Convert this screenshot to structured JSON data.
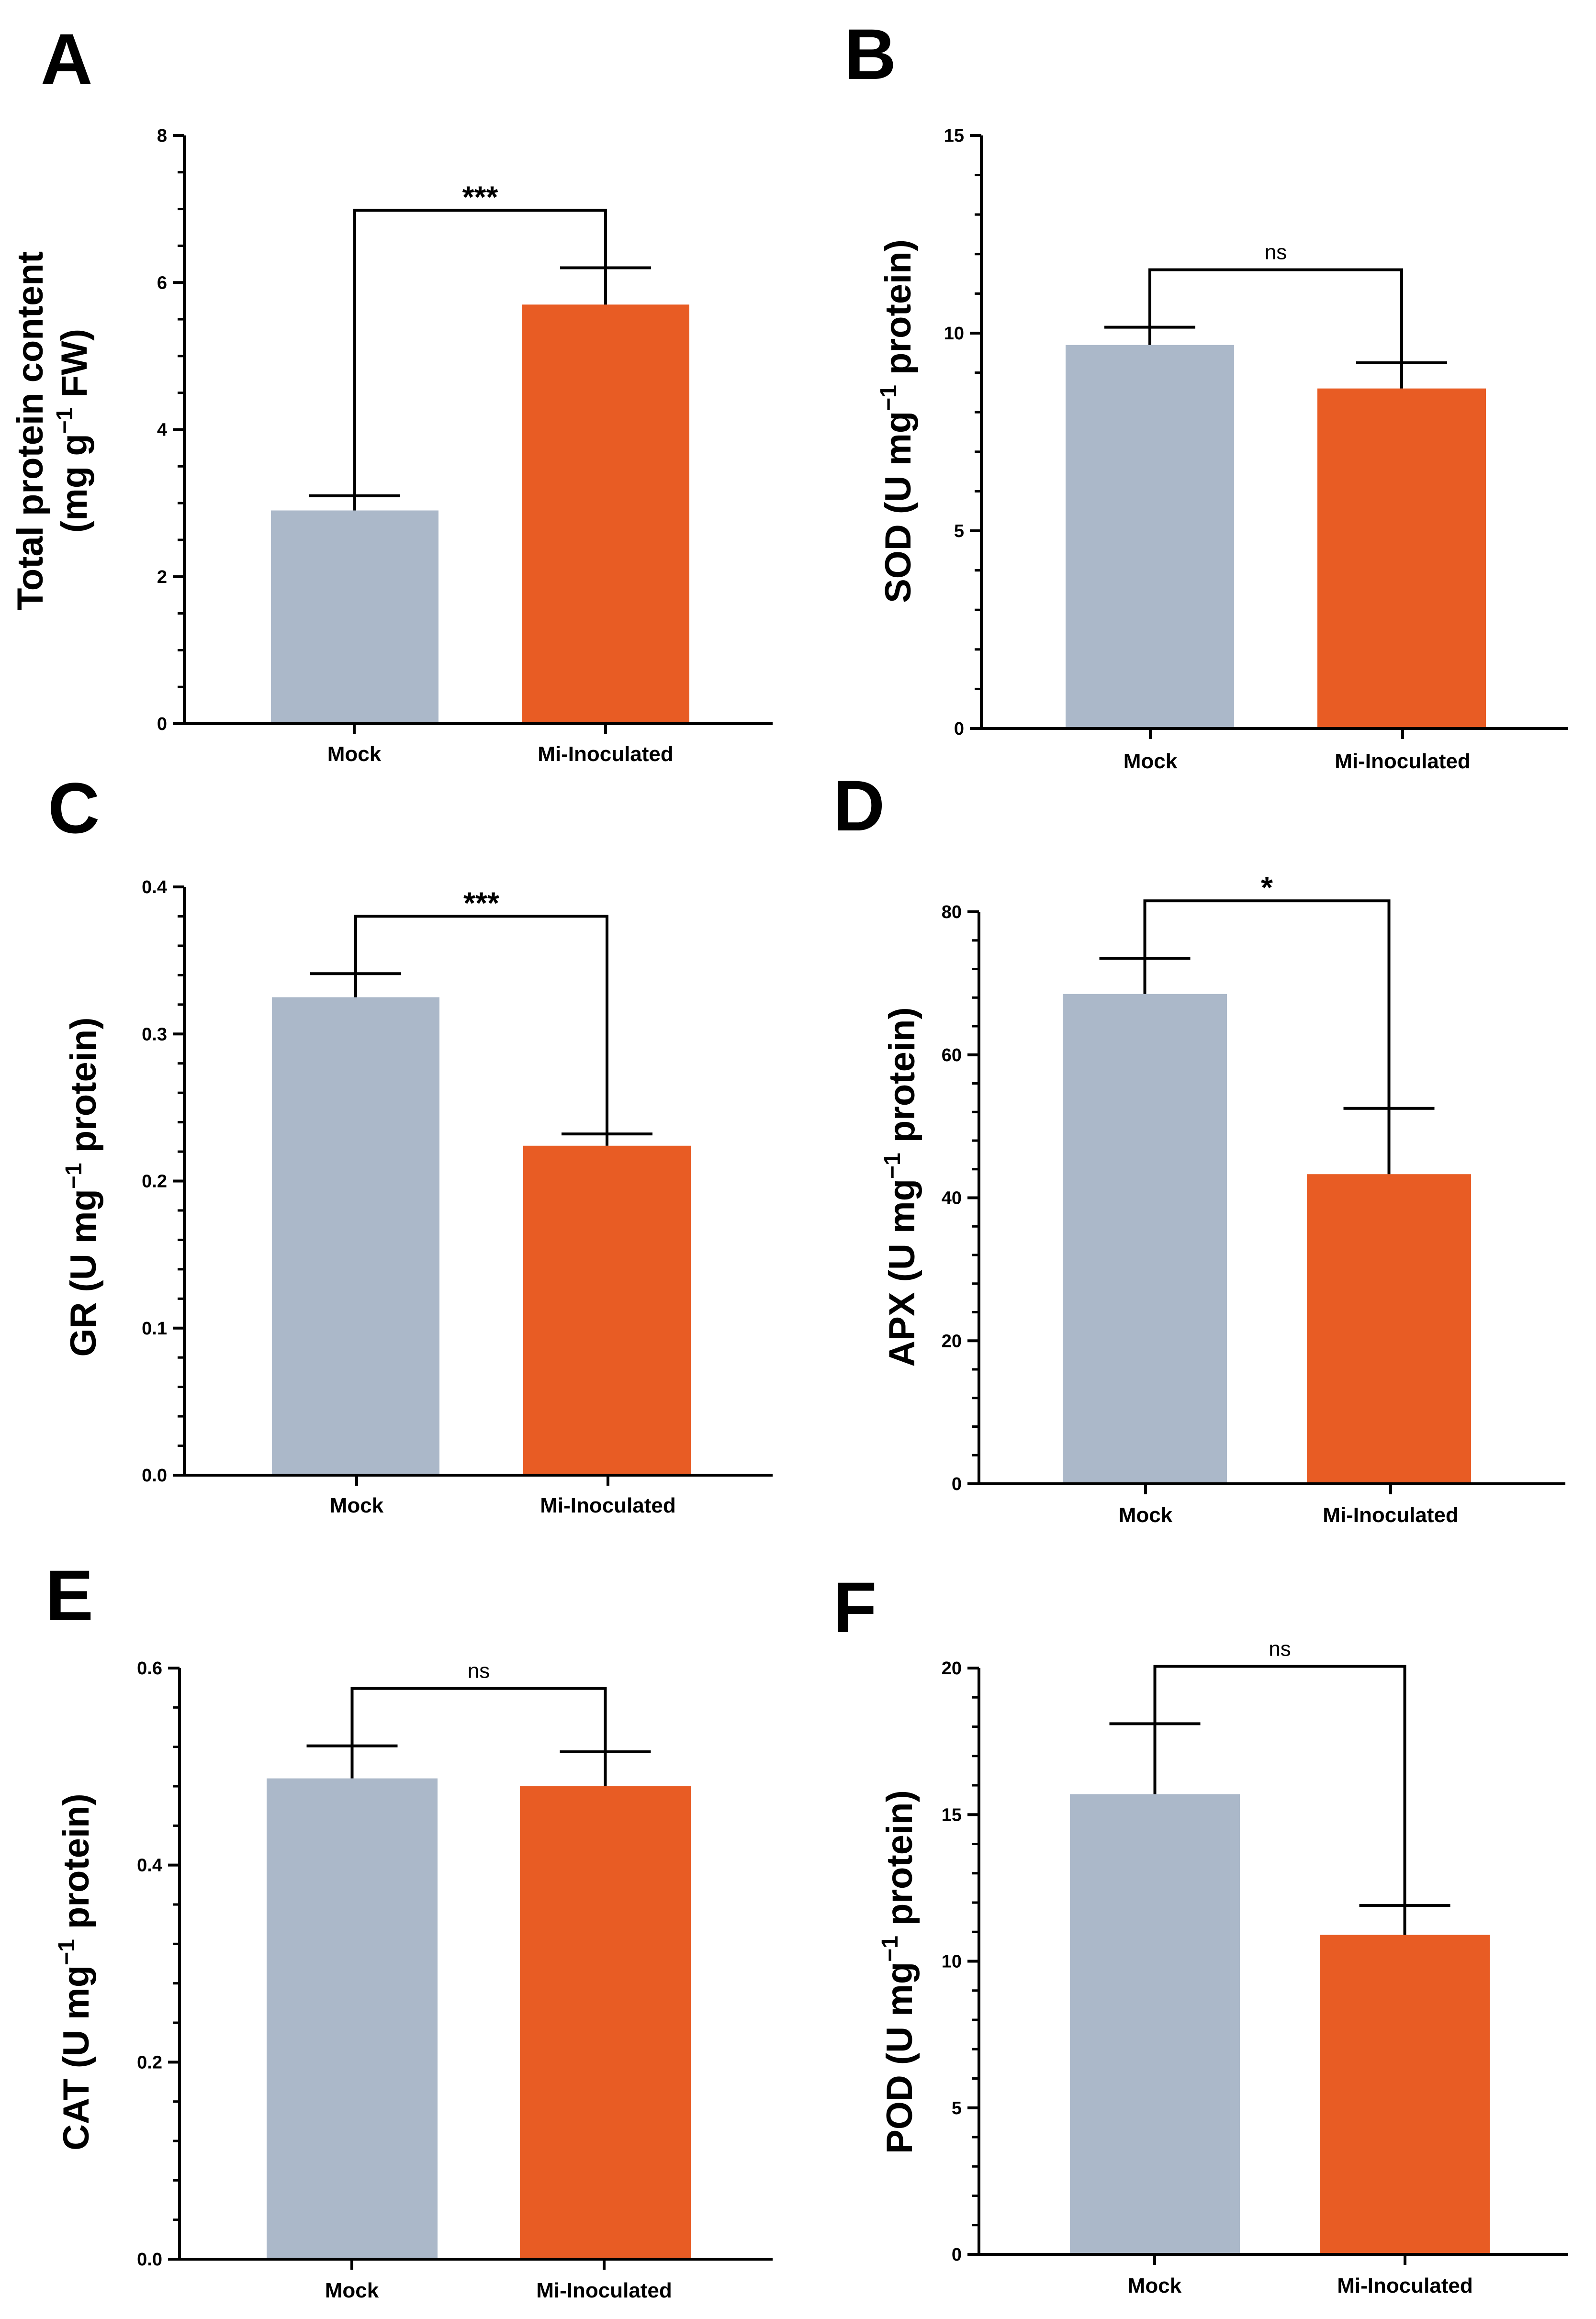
{
  "colors": {
    "mock": "#abb8c9",
    "inoculated": "#e85c24",
    "axis": "#000000"
  },
  "chart_data": [
    {
      "panel": "A",
      "type": "bar",
      "categories": [
        "Mock",
        "Mi-Inoculated"
      ],
      "values": [
        2.9,
        5.7
      ],
      "errors": [
        0.2,
        0.5
      ],
      "ylim": [
        0,
        8
      ],
      "yticks": [
        "0",
        "2",
        "4",
        "6",
        "8"
      ],
      "minor_ticks": 3,
      "ylabel_lines": [
        [
          "Total protein content"
        ],
        [
          "(mg g",
          "−1",
          " FW)"
        ]
      ],
      "significance": "***"
    },
    {
      "panel": "B",
      "type": "bar",
      "categories": [
        "Mock",
        "Mi-Inoculated"
      ],
      "values": [
        9.7,
        8.6
      ],
      "errors": [
        0.45,
        0.65
      ],
      "ylim": [
        0,
        15
      ],
      "yticks": [
        "0",
        "5",
        "10",
        "15"
      ],
      "minor_ticks": 4,
      "ylabel_lines": [
        [
          "SOD (U mg",
          "−1",
          " protein)"
        ]
      ],
      "significance": "ns"
    },
    {
      "panel": "C",
      "type": "bar",
      "categories": [
        "Mock",
        "Mi-Inoculated"
      ],
      "values": [
        0.325,
        0.224
      ],
      "errors": [
        0.016,
        0.008
      ],
      "ylim": [
        0,
        0.4
      ],
      "yticks": [
        "0.0",
        "0.1",
        "0.2",
        "0.3",
        "0.4"
      ],
      "minor_ticks": 4,
      "ylabel_lines": [
        [
          "GR (U mg",
          "−1",
          " protein)"
        ]
      ],
      "significance": "***"
    },
    {
      "panel": "D",
      "type": "bar",
      "categories": [
        "Mock",
        "Mi-Inoculated"
      ],
      "values": [
        68.5,
        43.3
      ],
      "errors": [
        5.0,
        9.2
      ],
      "ylim": [
        0,
        80
      ],
      "yticks": [
        "0",
        "20",
        "40",
        "60",
        "80"
      ],
      "minor_ticks": 4,
      "ylabel_lines": [
        [
          "APX (U mg",
          "−1",
          " protein)"
        ]
      ],
      "significance": "*"
    },
    {
      "panel": "E",
      "type": "bar",
      "categories": [
        "Mock",
        "Mi-Inoculated"
      ],
      "values": [
        0.488,
        0.48
      ],
      "errors": [
        0.033,
        0.035
      ],
      "ylim": [
        0,
        0.6
      ],
      "yticks": [
        "0.0",
        "0.2",
        "0.4",
        "0.6"
      ],
      "minor_ticks": 4,
      "ylabel_lines": [
        [
          "CAT (U mg",
          "−1",
          " protein)"
        ]
      ],
      "significance": "ns"
    },
    {
      "panel": "F",
      "type": "bar",
      "categories": [
        "Mock",
        "Mi-Inoculated"
      ],
      "values": [
        15.7,
        10.9
      ],
      "errors": [
        2.4,
        1.0
      ],
      "ylim": [
        0,
        20
      ],
      "yticks": [
        "0",
        "5",
        "10",
        "15",
        "20"
      ],
      "minor_ticks": 4,
      "ylabel_lines": [
        [
          "POD (U mg",
          "−1",
          " protein)"
        ]
      ],
      "significance": "ns"
    }
  ]
}
